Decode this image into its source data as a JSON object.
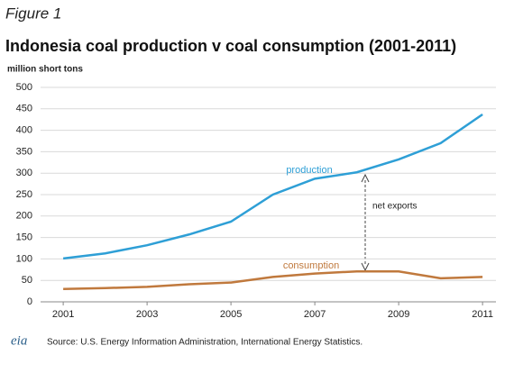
{
  "chart_data": {
    "type": "line",
    "figure_label": "Figure 1",
    "title": "Indonesia coal production v coal consumption (2001-2011)",
    "ylabel": "million short tons",
    "x": [
      2001,
      2002,
      2003,
      2004,
      2005,
      2006,
      2007,
      2008,
      2009,
      2010,
      2011
    ],
    "series": [
      {
        "name": "production",
        "color": "#2e9fd6",
        "values": [
          101,
          113,
          132,
          157,
          187,
          250,
          287,
          302,
          332,
          370,
          437
        ]
      },
      {
        "name": "consumption",
        "color": "#c0793d",
        "values": [
          30,
          32,
          35,
          41,
          45,
          58,
          66,
          71,
          71,
          55,
          58
        ]
      }
    ],
    "annotations": [
      "net exports"
    ],
    "xlim": [
      2000.46,
      2011.32
    ],
    "xticks": [
      2001,
      2003,
      2005,
      2007,
      2009,
      2011
    ],
    "ylim": [
      0,
      500
    ],
    "yticks": [
      0,
      50,
      100,
      150,
      200,
      250,
      300,
      350,
      400,
      450,
      500
    ],
    "grid": true,
    "logo": "eia",
    "source": "Source: U.S. Energy Information Administration, International Energy Statistics."
  }
}
